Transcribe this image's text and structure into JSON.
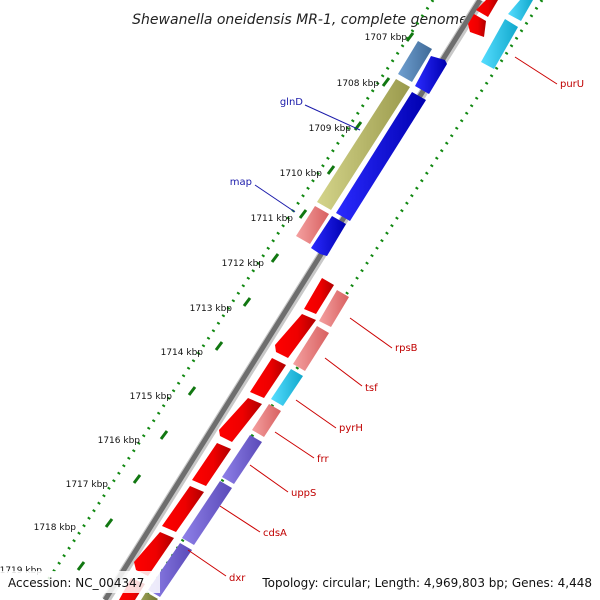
{
  "title": "Shewanella oneidensis MR-1, complete genome",
  "ticks": [
    "1707 kbp",
    "1708 kbp",
    "1709 kbp",
    "1710 kbp",
    "1711 kbp",
    "1712 kbp",
    "1713 kbp",
    "1714 kbp",
    "1715 kbp",
    "1716 kbp",
    "1717 kbp",
    "1718 kbp",
    "1719 kbp"
  ],
  "genes": {
    "glnD": "glnD",
    "map": "map",
    "purU": "purU",
    "rpsB": "rpsB",
    "tsf": "tsf",
    "pyrH": "pyrH",
    "frr": "frr",
    "uppS": "uppS",
    "cdsA": "cdsA",
    "dxr": "dxr"
  },
  "footer": {
    "accession": "Accession: NC_004347",
    "summary": "Topology: circular; Length: 4,969,803 bp; Genes: 4,448"
  },
  "colors": {
    "red": "#ff0000",
    "pink": "#f08080",
    "blue": "#0000ee",
    "steelblue": "#4f7fb3",
    "olive": "#bdbd6a",
    "cyan": "#22ccee",
    "purple": "#7a68d8",
    "green": "#117711",
    "backbone": "#777777"
  }
}
